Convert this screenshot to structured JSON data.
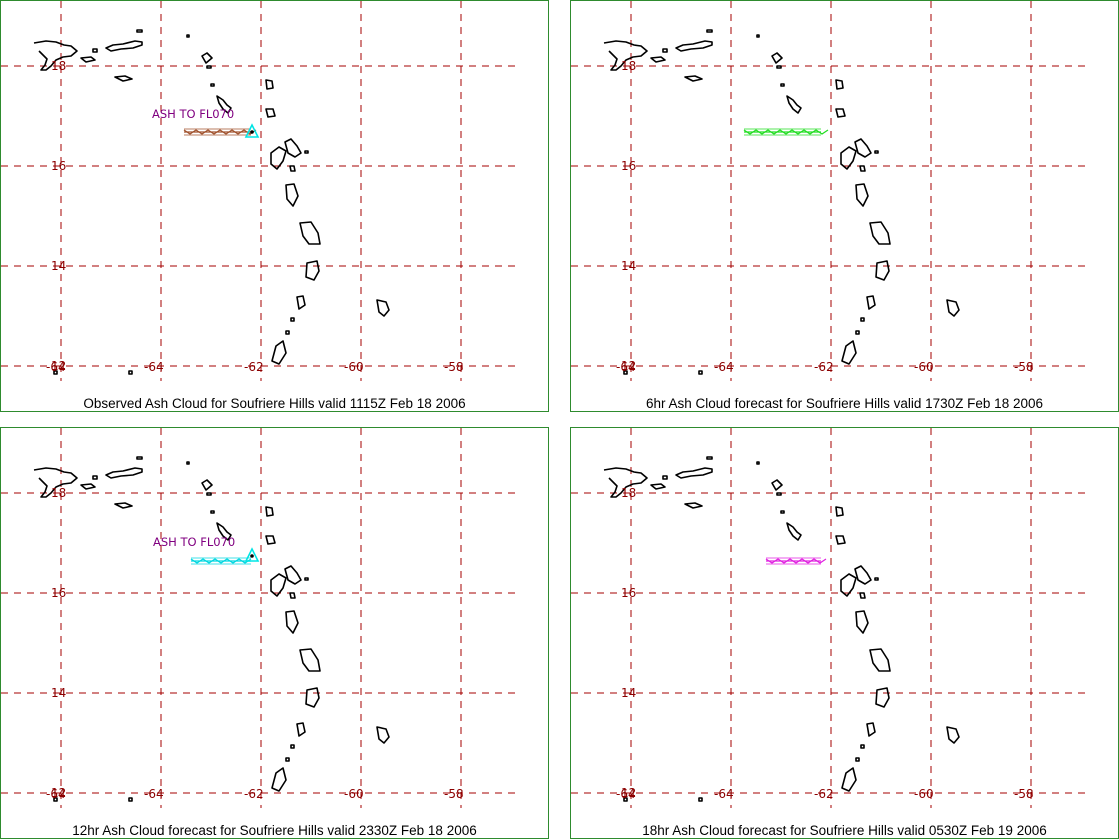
{
  "colors": {
    "grid": "#a40000",
    "tick_label": "#8b0000",
    "coast": "#000000",
    "ash_label": "#800080",
    "panel_border": "#2e8b2e",
    "source_marker": "#00e5e5"
  },
  "map": {
    "lon_labels": [
      "-64",
      "-62",
      "-60",
      "-58"
    ],
    "lat_labels": [
      "18",
      "16",
      "14",
      "12"
    ],
    "ash_label": "ASH TO FL070"
  },
  "panels": [
    {
      "caption": "Observed Ash Cloud for Soufriere  Hills valid 1115Z Feb 18 2006",
      "ash_color": "#a0522d"
    },
    {
      "caption": "6hr Ash Cloud forecast for Soufriere  Hills valid 1730Z Feb 18 2006",
      "ash_color": "#22dd22"
    },
    {
      "caption": "12hr Ash Cloud forecast for Soufriere  Hills valid 2330Z Feb 18 2006",
      "ash_color": "#00d7e0"
    },
    {
      "caption": "18hr Ash Cloud forecast for Soufriere  Hills valid 0530Z Feb 19 2006",
      "ash_color": "#e020e0"
    }
  ]
}
